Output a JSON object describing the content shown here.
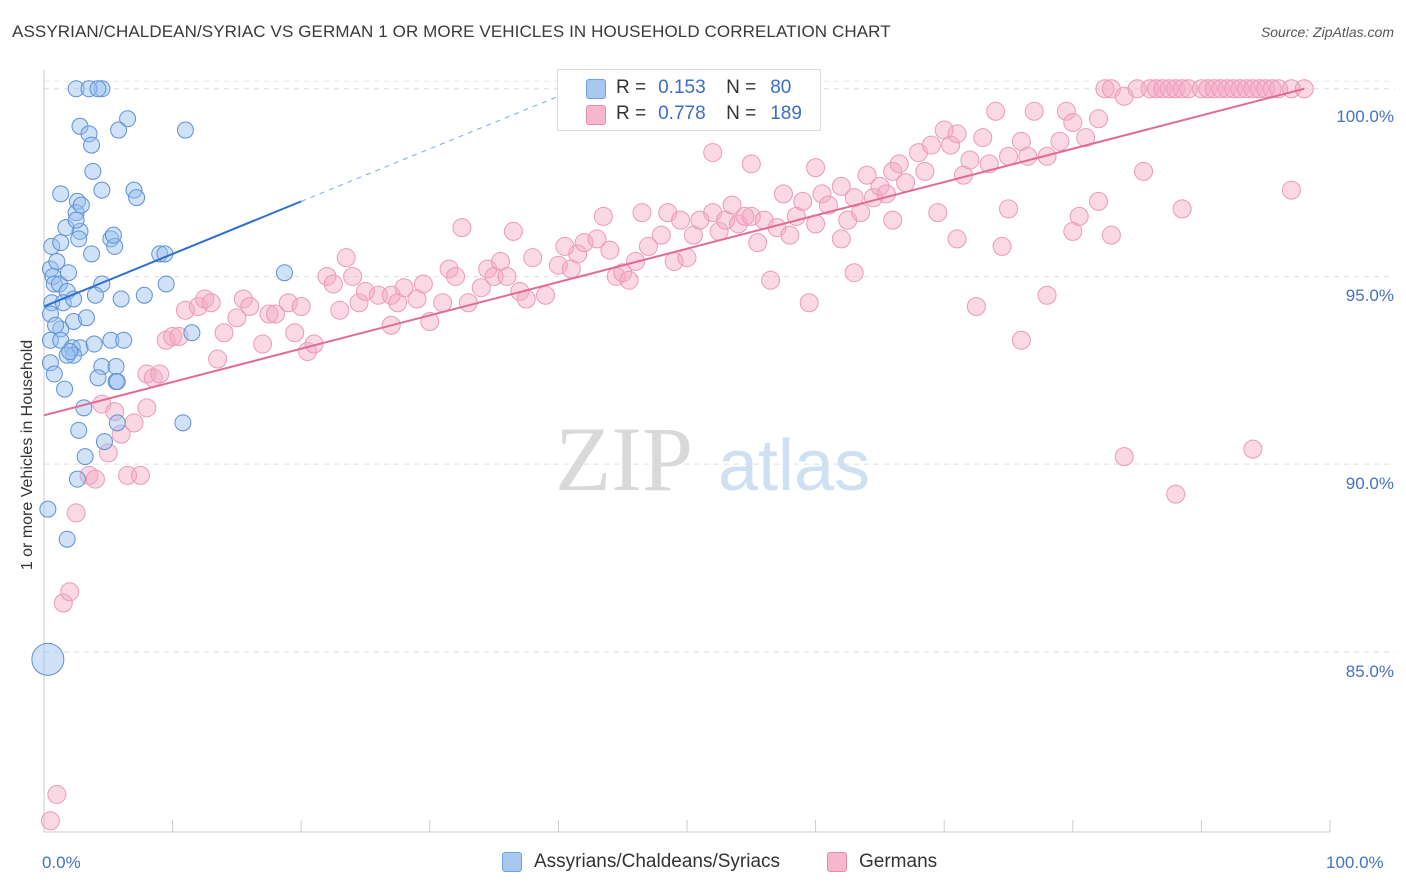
{
  "header": {
    "title": "ASSYRIAN/CHALDEAN/SYRIAC VS GERMAN 1 OR MORE VEHICLES IN HOUSEHOLD CORRELATION CHART",
    "source": "Source: ZipAtlas.com"
  },
  "watermark": {
    "zip": "ZIP",
    "atlas": "atlas"
  },
  "legend": {
    "r_label": "R =",
    "n_label": "N =",
    "series1": {
      "r": "0.153",
      "n": "80",
      "color": "#a8c8f0"
    },
    "series2": {
      "r": "0.778",
      "n": "189",
      "color": "#f5b8cc"
    }
  },
  "bottom_legend": {
    "series1": "Assyrians/Chaldeans/Syriacs",
    "series2": "Germans"
  },
  "chart_data": {
    "type": "scatter",
    "title": "ASSYRIAN/CHALDEAN/SYRIAC VS GERMAN 1 OR MORE VEHICLES IN HOUSEHOLD CORRELATION CHART",
    "ylabel": "1 or more Vehicles in Household",
    "xlabel": "",
    "xlim": [
      0,
      100
    ],
    "ylim": [
      80.2,
      100.5
    ],
    "x_tick_labels": [
      "0.0%",
      "100.0%"
    ],
    "y_tick_labels": [
      "85.0%",
      "90.0%",
      "95.0%",
      "100.0%"
    ],
    "y_ticks": [
      85,
      90,
      95,
      100
    ],
    "grid": true,
    "legend_position": "top-center",
    "series": [
      {
        "name": "Assyrians/Chaldeans/Syriacs",
        "color": "#6fa0e0",
        "R": 0.153,
        "N": 80,
        "trend": {
          "x": [
            0,
            20
          ],
          "y": [
            94.2,
            97.0
          ],
          "extended_to": [
            40,
            100
          ]
        },
        "points": [
          [
            2.5,
            100
          ],
          [
            4.5,
            100
          ],
          [
            3.5,
            100
          ],
          [
            4.2,
            100
          ],
          [
            2.8,
            99
          ],
          [
            6.5,
            99.2
          ],
          [
            3.5,
            98.8
          ],
          [
            5.8,
            98.9
          ],
          [
            3.7,
            98.5
          ],
          [
            11,
            98.9
          ],
          [
            3.8,
            97.8
          ],
          [
            1.3,
            97.2
          ],
          [
            2.6,
            97
          ],
          [
            4.5,
            97.3
          ],
          [
            7,
            97.3
          ],
          [
            7.2,
            97.1
          ],
          [
            2.5,
            96.7
          ],
          [
            2.8,
            96.2
          ],
          [
            1.7,
            96.3
          ],
          [
            2.5,
            96.5
          ],
          [
            2.7,
            96
          ],
          [
            5.2,
            96
          ],
          [
            0.6,
            95.8
          ],
          [
            1.3,
            95.9
          ],
          [
            3.7,
            95.6
          ],
          [
            5.5,
            95.8
          ],
          [
            5.4,
            96.1
          ],
          [
            9,
            95.6
          ],
          [
            9.4,
            95.6
          ],
          [
            0.5,
            95.2
          ],
          [
            0.7,
            95
          ],
          [
            0.8,
            94.8
          ],
          [
            1.2,
            94.8
          ],
          [
            1.8,
            94.6
          ],
          [
            4.5,
            94.8
          ],
          [
            9.5,
            94.8
          ],
          [
            18.7,
            95.1
          ],
          [
            0.6,
            94.3
          ],
          [
            1.5,
            94.3
          ],
          [
            2.3,
            94.4
          ],
          [
            6,
            94.4
          ],
          [
            0.5,
            94
          ],
          [
            2.3,
            93.8
          ],
          [
            1.3,
            93.6
          ],
          [
            0.5,
            93.3
          ],
          [
            1.3,
            93.3
          ],
          [
            2.2,
            93.1
          ],
          [
            2.8,
            93.1
          ],
          [
            5.2,
            93.3
          ],
          [
            6.2,
            93.3
          ],
          [
            11.5,
            93.5
          ],
          [
            0.5,
            92.7
          ],
          [
            0.8,
            92.4
          ],
          [
            2.3,
            92.9
          ],
          [
            1.8,
            92.9
          ],
          [
            4.5,
            92.6
          ],
          [
            5.6,
            92.6
          ],
          [
            4.2,
            92.3
          ],
          [
            5.6,
            92.2
          ],
          [
            5.7,
            92.2
          ],
          [
            3.1,
            91.5
          ],
          [
            5.7,
            91.1
          ],
          [
            10.8,
            91.1
          ],
          [
            2.7,
            90.9
          ],
          [
            4.7,
            90.6
          ],
          [
            3.2,
            90.2
          ],
          [
            2.6,
            89.6
          ],
          [
            0.3,
            88.8
          ],
          [
            1.8,
            88.0
          ],
          [
            0.3,
            84.8
          ],
          [
            1.0,
            95.4
          ],
          [
            1.9,
            95.1
          ],
          [
            2.0,
            93.0
          ],
          [
            3.3,
            93.9
          ],
          [
            4.0,
            94.5
          ],
          [
            7.8,
            94.5
          ],
          [
            1.6,
            92.0
          ],
          [
            3.9,
            93.2
          ],
          [
            0.9,
            93.7
          ],
          [
            2.9,
            96.9
          ]
        ]
      },
      {
        "name": "Germans",
        "color": "#f29fbb",
        "R": 0.778,
        "N": 189,
        "trend": {
          "x": [
            0,
            98
          ],
          "y": [
            91.3,
            100.0
          ]
        },
        "points": [
          [
            0.5,
            80.5
          ],
          [
            1,
            81.2
          ],
          [
            1.5,
            86.3
          ],
          [
            2,
            86.6
          ],
          [
            2.5,
            88.7
          ],
          [
            3.5,
            89.7
          ],
          [
            4,
            89.6
          ],
          [
            6.5,
            89.7
          ],
          [
            7.5,
            89.7
          ],
          [
            5,
            90.3
          ],
          [
            6,
            90.8
          ],
          [
            7,
            91.1
          ],
          [
            4.5,
            91.6
          ],
          [
            5.5,
            91.4
          ],
          [
            8,
            92.4
          ],
          [
            8.5,
            92.3
          ],
          [
            9.5,
            93.3
          ],
          [
            10,
            93.4
          ],
          [
            10.5,
            93.4
          ],
          [
            11,
            94.1
          ],
          [
            12,
            94.2
          ],
          [
            12.5,
            94.4
          ],
          [
            13,
            94.3
          ],
          [
            14,
            93.5
          ],
          [
            15,
            93.9
          ],
          [
            15.5,
            94.4
          ],
          [
            16,
            94.2
          ],
          [
            17,
            93.2
          ],
          [
            17.5,
            94
          ],
          [
            18,
            94
          ],
          [
            19,
            94.3
          ],
          [
            20,
            94.2
          ],
          [
            20.5,
            93
          ],
          [
            21,
            93.2
          ],
          [
            22,
            95
          ],
          [
            22.5,
            94.8
          ],
          [
            23,
            94.1
          ],
          [
            24,
            95
          ],
          [
            24.5,
            94.3
          ],
          [
            25,
            94.6
          ],
          [
            26,
            94.5
          ],
          [
            27,
            94.5
          ],
          [
            27.5,
            94.3
          ],
          [
            28,
            94.7
          ],
          [
            29,
            94.4
          ],
          [
            29.5,
            94.8
          ],
          [
            30,
            93.8
          ],
          [
            31,
            94.3
          ],
          [
            31.5,
            95.2
          ],
          [
            32,
            95
          ],
          [
            33,
            94.3
          ],
          [
            34,
            94.7
          ],
          [
            34.5,
            95.2
          ],
          [
            35,
            95
          ],
          [
            35.5,
            95.4
          ],
          [
            36,
            95
          ],
          [
            37,
            94.6
          ],
          [
            37.5,
            94.4
          ],
          [
            38,
            95.5
          ],
          [
            39,
            94.5
          ],
          [
            40,
            95.3
          ],
          [
            41,
            95.2
          ],
          [
            41.5,
            95.6
          ],
          [
            42,
            95.9
          ],
          [
            43,
            96
          ],
          [
            44,
            95.7
          ],
          [
            44.5,
            95
          ],
          [
            45,
            95.1
          ],
          [
            45.5,
            94.9
          ],
          [
            46,
            95.4
          ],
          [
            47,
            95.8
          ],
          [
            48,
            96.1
          ],
          [
            48.5,
            96.7
          ],
          [
            49,
            95.4
          ],
          [
            50,
            95.5
          ],
          [
            50.5,
            96.1
          ],
          [
            51,
            96.5
          ],
          [
            52,
            96.7
          ],
          [
            52.5,
            96.2
          ],
          [
            53,
            96.5
          ],
          [
            54,
            96.4
          ],
          [
            54.5,
            96.6
          ],
          [
            55,
            96.6
          ],
          [
            55.5,
            95.9
          ],
          [
            56,
            96.5
          ],
          [
            57,
            96.3
          ],
          [
            57.5,
            97.2
          ],
          [
            58,
            96.1
          ],
          [
            58.5,
            96.6
          ],
          [
            59,
            97
          ],
          [
            60,
            96.4
          ],
          [
            60.5,
            97.2
          ],
          [
            61,
            96.9
          ],
          [
            62,
            97.4
          ],
          [
            62.5,
            96.5
          ],
          [
            63,
            97.1
          ],
          [
            63.5,
            96.7
          ],
          [
            64,
            97.7
          ],
          [
            64.5,
            97.1
          ],
          [
            65,
            97.4
          ],
          [
            66,
            97.8
          ],
          [
            66.5,
            98
          ],
          [
            67,
            97.5
          ],
          [
            68,
            98.3
          ],
          [
            68.5,
            97.8
          ],
          [
            69,
            98.5
          ],
          [
            70,
            98.9
          ],
          [
            70.5,
            98.5
          ],
          [
            71,
            98.8
          ],
          [
            71.5,
            97.7
          ],
          [
            72,
            98.1
          ],
          [
            73,
            98.7
          ],
          [
            73.5,
            98
          ],
          [
            74,
            99.4
          ],
          [
            75,
            98.2
          ],
          [
            76,
            98.6
          ],
          [
            76.5,
            98.2
          ],
          [
            77,
            99.4
          ],
          [
            78,
            98.2
          ],
          [
            79,
            98.6
          ],
          [
            79.5,
            99.4
          ],
          [
            80,
            99.1
          ],
          [
            81,
            98.7
          ],
          [
            82,
            99.2
          ],
          [
            82.5,
            100
          ],
          [
            83,
            100
          ],
          [
            84,
            99.8
          ],
          [
            85,
            100
          ],
          [
            86,
            100
          ],
          [
            86.5,
            100
          ],
          [
            87,
            100
          ],
          [
            87.5,
            100
          ],
          [
            88,
            100
          ],
          [
            88.5,
            100
          ],
          [
            89,
            100
          ],
          [
            90,
            100
          ],
          [
            90.5,
            100
          ],
          [
            91,
            100
          ],
          [
            91.5,
            100
          ],
          [
            92,
            100
          ],
          [
            92.5,
            100
          ],
          [
            93,
            100
          ],
          [
            93.5,
            100
          ],
          [
            94,
            100
          ],
          [
            94.5,
            100
          ],
          [
            95,
            100
          ],
          [
            95.5,
            100
          ],
          [
            96,
            100
          ],
          [
            97,
            100
          ],
          [
            98,
            100
          ],
          [
            8,
            91.5
          ],
          [
            9,
            92.4
          ],
          [
            13.5,
            92.8
          ],
          [
            19.5,
            93.5
          ],
          [
            23.5,
            95.5
          ],
          [
            27,
            93.7
          ],
          [
            32.5,
            96.3
          ],
          [
            36.5,
            96.2
          ],
          [
            40.5,
            95.8
          ],
          [
            43.5,
            96.6
          ],
          [
            46.5,
            96.7
          ],
          [
            49.5,
            96.5
          ],
          [
            53.5,
            96.9
          ],
          [
            56.5,
            94.9
          ],
          [
            59.5,
            94.3
          ],
          [
            63,
            95.1
          ],
          [
            65.5,
            97.2
          ],
          [
            69.5,
            96.7
          ],
          [
            72.5,
            94.2
          ],
          [
            75,
            96.8
          ],
          [
            74.5,
            95.8
          ],
          [
            78,
            94.5
          ],
          [
            80.5,
            96.6
          ],
          [
            82,
            97
          ],
          [
            83,
            96.1
          ],
          [
            84,
            90.2
          ],
          [
            85.5,
            97.8
          ],
          [
            88,
            89.2
          ],
          [
            88.5,
            96.8
          ],
          [
            94,
            90.4
          ],
          [
            97,
            97.3
          ],
          [
            76,
            93.3
          ],
          [
            62,
            96
          ],
          [
            55,
            98
          ],
          [
            52,
            98.3
          ],
          [
            60,
            97.9
          ],
          [
            66,
            96.5
          ],
          [
            71,
            96
          ],
          [
            80,
            96.2
          ]
        ]
      }
    ]
  }
}
